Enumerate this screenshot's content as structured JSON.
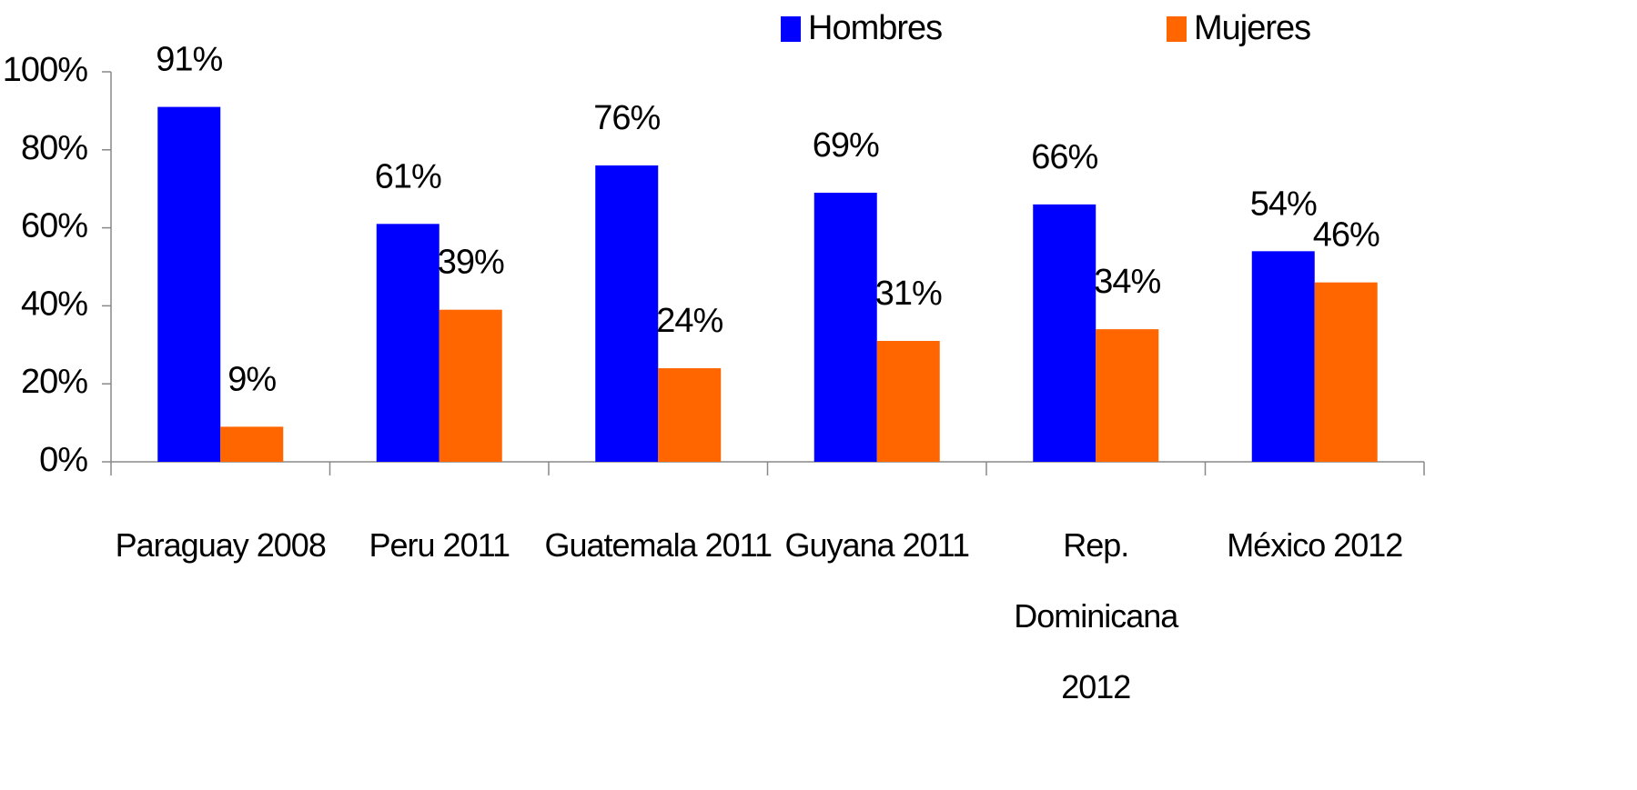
{
  "chart_data": {
    "type": "bar",
    "categories": [
      "Paraguay 2008",
      "Peru 2011",
      "Guatemala 2011",
      "Guyana 2011",
      "Rep. Dominicana 2012",
      "México 2012"
    ],
    "series": [
      {
        "name": "Hombres",
        "color": "#0000ff",
        "values": [
          91,
          61,
          76,
          69,
          66,
          54
        ],
        "value_labels": [
          "91%",
          "61%",
          "76%",
          "69%",
          "66%",
          "54%"
        ]
      },
      {
        "name": "Mujeres",
        "color": "#ff6600",
        "values": [
          9,
          39,
          24,
          31,
          34,
          46
        ],
        "value_labels": [
          "9%",
          "39%",
          "24%",
          "31%",
          "34%",
          "46%"
        ]
      }
    ],
    "ylim": [
      0,
      100
    ],
    "yticks": [
      {
        "value": 0,
        "label": "0%"
      },
      {
        "value": 20,
        "label": "20%"
      },
      {
        "value": 40,
        "label": "40%"
      },
      {
        "value": 60,
        "label": "60%"
      },
      {
        "value": 80,
        "label": "80%"
      },
      {
        "value": 100,
        "label": "100%"
      }
    ],
    "legend": "top-right"
  }
}
